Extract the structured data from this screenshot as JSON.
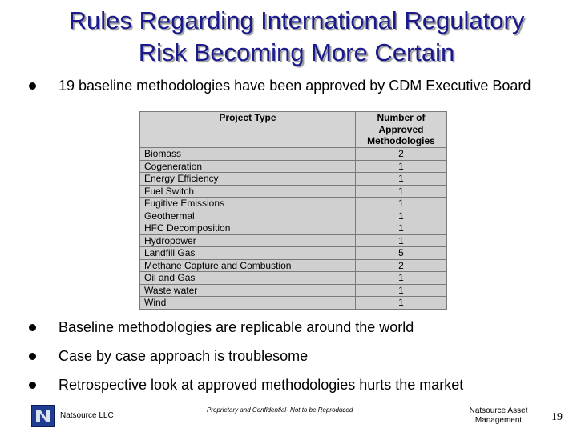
{
  "title_line1": "Rules Regarding International Regulatory",
  "title_line2": "Risk Becoming More Certain",
  "bullets": [
    "19 baseline methodologies have been approved by CDM Executive Board",
    "Baseline methodologies are replicable around the world",
    "Case by case approach is troublesome",
    "Retrospective look at approved methodologies hurts the market"
  ],
  "table": {
    "headers": [
      "Project Type",
      "Number of Approved Methodologies"
    ],
    "rows": [
      [
        "Biomass",
        "2"
      ],
      [
        "Cogeneration",
        "1"
      ],
      [
        "Energy Efficiency",
        "1"
      ],
      [
        "Fuel Switch",
        "1"
      ],
      [
        "Fugitive Emissions",
        "1"
      ],
      [
        "Geothermal",
        "1"
      ],
      [
        "HFC Decomposition",
        "1"
      ],
      [
        "Hydropower",
        "1"
      ],
      [
        "Landfill Gas",
        "5"
      ],
      [
        "Methane Capture and Combustion",
        "2"
      ],
      [
        "Oil and Gas",
        "1"
      ],
      [
        "Waste water",
        "1"
      ],
      [
        "Wind",
        "1"
      ]
    ]
  },
  "footer": {
    "company": "Natsource LLC",
    "confidential": "Proprietary and Confidential- Not to be Reproduced",
    "right_line1": "Natsource Asset",
    "right_line2": "Management",
    "page_number": "19",
    "logo_icon": "natsource-logo-icon",
    "logo_color": "#1f3d91"
  }
}
